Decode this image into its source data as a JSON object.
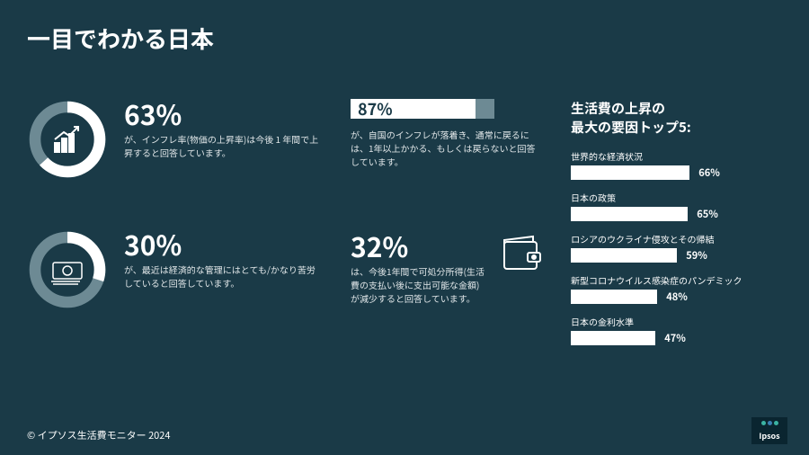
{
  "title": "一目でわかる日本",
  "colors": {
    "bg": "#1a3a47",
    "accent": "#ffffff",
    "muted": "#6d8a94",
    "track": "#3a5560"
  },
  "left": [
    {
      "pct": 63,
      "pct_label": "63%",
      "desc": "が、インフレ率(物価の上昇率)は今後 1 年間で上昇すると回答しています。",
      "icon": "chart-up"
    },
    {
      "pct": 30,
      "pct_label": "30%",
      "desc": "が、最近は経済的な管理にはとても/かなり苦労していると回答しています。",
      "icon": "money"
    }
  ],
  "mid_top": {
    "pct": 87,
    "pct_label": "87%",
    "desc": "が、自国のインフレが落着き、通常に戻るには、1年以上かかる、もしくは戻らないと回答しています。"
  },
  "mid_bottom": {
    "pct_label": "32%",
    "desc": "は、今後1年間で可処分所得(生活費の支払い後に支出可能な金額)が減少すると回答しています。",
    "icon": "wallet"
  },
  "right": {
    "title_line1": "生活費の上昇の",
    "title_line2": "最大の要因トップ5:",
    "bars": [
      {
        "label": "世界的な経済状況",
        "pct": 66,
        "pct_label": "66%"
      },
      {
        "label": "日本の政策",
        "pct": 65,
        "pct_label": "65%"
      },
      {
        "label": "ロシアのウクライナ侵攻とその帰結",
        "pct": 59,
        "pct_label": "59%"
      },
      {
        "label": "新型コロナウイルス感染症のパンデミック",
        "pct": 48,
        "pct_label": "48%"
      },
      {
        "label": "日本の金利水準",
        "pct": 47,
        "pct_label": "47%"
      }
    ]
  },
  "footer": "© イプソス生活費モニター 2024",
  "logo": "Ipsos"
}
